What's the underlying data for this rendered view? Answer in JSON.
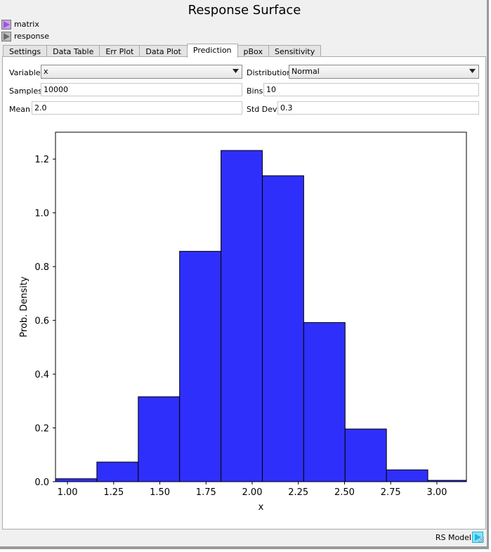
{
  "window_title": "Response Surface",
  "ports": [
    {
      "label": "matrix",
      "icon": "play-arrow-icon",
      "color": "#b37bd6"
    },
    {
      "label": "response",
      "icon": "play-arrow-icon",
      "color": "#8f8f8f"
    }
  ],
  "tabs": [
    {
      "label": "Settings"
    },
    {
      "label": "Data Table"
    },
    {
      "label": "Err Plot"
    },
    {
      "label": "Data Plot"
    },
    {
      "label": "Prediction",
      "active": true
    },
    {
      "label": "pBox"
    },
    {
      "label": "Sensitivity"
    }
  ],
  "form": {
    "variable_label": "Variable",
    "variable_value": "x",
    "distribution_label": "Distribution",
    "distribution_value": "Normal",
    "samples_label": "Samples",
    "samples_value": "10000",
    "bins_label": "Bins",
    "bins_value": "10",
    "mean_label": "Mean",
    "mean_value": "2.0",
    "stddev_label": "Std Dev",
    "stddev_value": "0.3"
  },
  "chart_data": {
    "type": "bar",
    "xlabel": "x",
    "ylabel": "Prob. Density",
    "bin_edges": [
      0.935,
      1.159,
      1.383,
      1.607,
      1.831,
      2.055,
      2.279,
      2.503,
      2.727,
      2.951,
      3.175
    ],
    "values": [
      0.011,
      0.073,
      0.316,
      0.857,
      1.232,
      1.138,
      0.592,
      0.196,
      0.044,
      0.005
    ],
    "xlim": [
      0.935,
      3.16
    ],
    "ylim": [
      0,
      1.3
    ],
    "xticks": [
      "1.00",
      "1.25",
      "1.50",
      "1.75",
      "2.00",
      "2.25",
      "2.50",
      "2.75",
      "3.00"
    ],
    "yticks": [
      "0.0",
      "0.2",
      "0.4",
      "0.6",
      "0.8",
      "1.0",
      "1.2"
    ],
    "bar_color": "#2f2ffb",
    "edge_color": "#000000"
  },
  "status": {
    "label": "RS Model",
    "icon": "play-arrow-icon",
    "color": "#19b9e6"
  }
}
